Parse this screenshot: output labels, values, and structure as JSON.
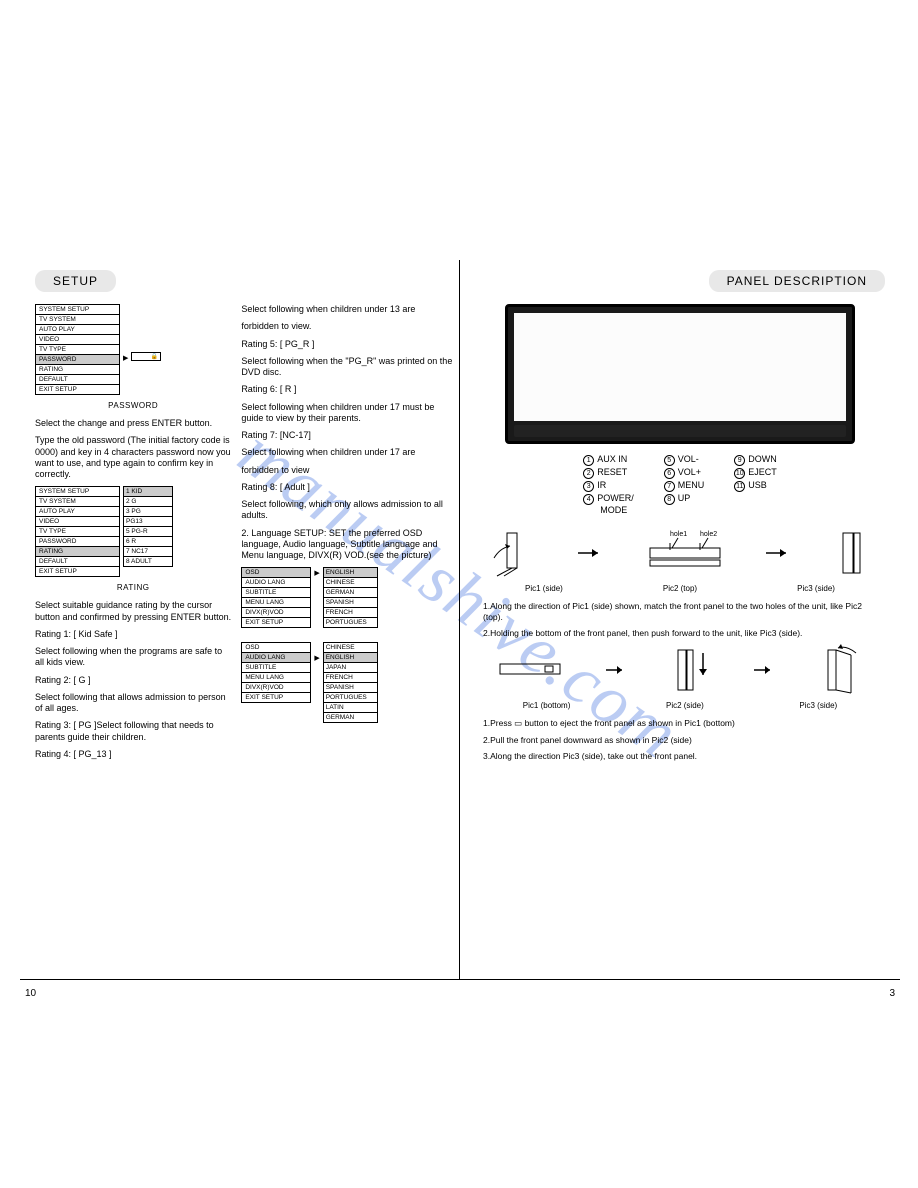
{
  "left": {
    "title": "SETUP",
    "password_menu": {
      "items": [
        "SYSTEM SETUP",
        "TV SYSTEM",
        "AUTO PLAY",
        "VIDEO",
        "TV TYPE",
        "PASSWORD",
        "RATING",
        "DEFAULT",
        "EXIT SETUP"
      ],
      "selected": 5,
      "caption": "PASSWORD"
    },
    "password_text": [
      "Select the change and press ENTER button.",
      "Type the old password (The initial factory code is 0000) and key in 4 characters password now you want to use, and type again to confirm key in correctly."
    ],
    "rating_menu": {
      "items": [
        "SYSTEM SETUP",
        "TV SYSTEM",
        "AUTO PLAY",
        "VIDEO",
        "TV TYPE",
        "PASSWORD",
        "RATING",
        "DEFAULT",
        "EXIT SETUP"
      ],
      "selected": 6,
      "sub": [
        "1  KID",
        "2 G",
        "3 PG",
        "PG13",
        "5 PG-R",
        "6 R",
        "7 NC17",
        "8 ADULT"
      ],
      "sub_selected": 0,
      "caption": "RATING"
    },
    "rating_text": [
      "Select suitable guidance rating by the cursor button and confirmed by pressing ENTER button.",
      "Rating 1:   [ Kid Safe ]",
      "Select following when the programs are safe to all kids view.",
      "Rating 2:   [ G ]",
      "Select following that allows admission to person of all ages.",
      "Rating 3:  [ PG ]Select following that needs to parents guide their children.",
      "Rating 4:  [ PG_13 ]"
    ],
    "col2_text": [
      "Select following when children under 13 are",
      "forbidden to view.",
      "Rating 5:  [ PG_R ]",
      "Select following when the \"PG_R\" was printed on the DVD disc.",
      "Rating 6:  [ R ]",
      "Select following when children under 17 must be guide to view by their parents.",
      "Rating 7: [NC-17]",
      "Select following when children under 17 are",
      "forbidden to view",
      "Rating 8: [ Adult ]",
      "Select following, which only allows admission to all adults.",
      "",
      "2. Language SETUP: SET the preferred OSD language, Audio language, Subtitle language and Menu language, DIVX(R) VOD.(see the picture)"
    ],
    "lang_menu1": {
      "left": [
        "OSD",
        "AUDIO LANG",
        "SUBTITLE",
        "MENU LANG",
        "DIVX(R)VOD",
        "EXIT SETUP"
      ],
      "left_sel": 0,
      "right": [
        "ENGLISH",
        "CHINESE",
        "GERMAN",
        "SPANISH",
        "FRENCH",
        "PORTUGUES"
      ],
      "right_sel": 0
    },
    "lang_menu2": {
      "left": [
        "OSD",
        "AUDIO LANG",
        "SUBTITLE",
        "MENU LANG",
        "DIVX(R)VOD",
        "EXIT SETUP"
      ],
      "left_sel": 1,
      "right": [
        "CHINESE",
        "ENGLISH",
        "JAPAN",
        "FRENCH",
        "SPANISH",
        "PORTUGUES",
        "LATIN",
        "GERMAN"
      ],
      "right_sel": 1
    },
    "pagenum": "10"
  },
  "right": {
    "title": "PANEL DESCRIPTION",
    "legend": [
      {
        "n": "1",
        "t": "AUX IN"
      },
      {
        "n": "2",
        "t": "RESET"
      },
      {
        "n": "3",
        "t": "IR"
      },
      {
        "n": "4",
        "t": "POWER/\nMODE"
      },
      {
        "n": "5",
        "t": "VOL-"
      },
      {
        "n": "6",
        "t": "VOL+"
      },
      {
        "n": "7",
        "t": "MENU"
      },
      {
        "n": "8",
        "t": "UP"
      },
      {
        "n": "9",
        "t": "DOWN"
      },
      {
        "n": "10",
        "t": "EJECT"
      },
      {
        "n": "11",
        "t": "USB"
      }
    ],
    "row1_labels": [
      "Pic1 (side)",
      "Pic2 (top)",
      "Pic3 (side)"
    ],
    "row1_hole_labels": [
      "hole1",
      "hole2"
    ],
    "instr1": [
      "1.Along the direction of Pic1 (side) shown, match the front panel to the two holes of the unit, like Pic2 (top).",
      "2.Holding the bottom of the front panel, then push forward to the unit, like Pic3 (side)."
    ],
    "row2_labels": [
      "Pic1 (bottom)",
      "Pic2 (side)",
      "Pic3 (side)"
    ],
    "instr2": [
      "1.Press ▭ button to eject the front panel as shown in Pic1 (bottom)",
      "2.Pull the front panel downward as shown in Pic2 (side)",
      "3.Along the direction Pic3 (side), take out the front panel."
    ],
    "pagenum": "3"
  },
  "watermark": "manualshive.com"
}
